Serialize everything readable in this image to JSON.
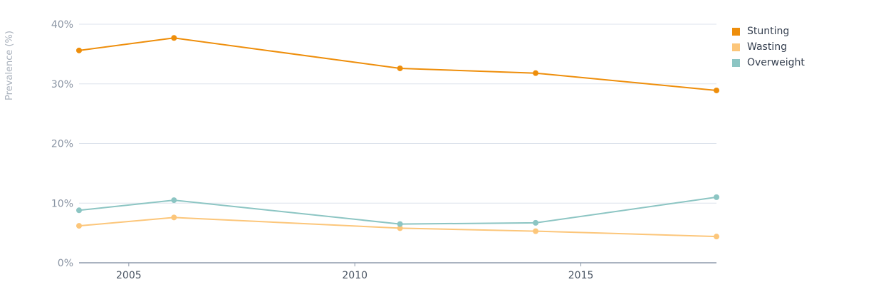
{
  "chart_data": {
    "type": "line",
    "ylabel": "Prevalence (%)",
    "ylim": [
      0,
      40
    ],
    "yticks": [
      {
        "value": 0,
        "label": "0%"
      },
      {
        "value": 10,
        "label": "10%"
      },
      {
        "value": 20,
        "label": "20%"
      },
      {
        "value": 30,
        "label": "30%"
      },
      {
        "value": 40,
        "label": "40%"
      }
    ],
    "xlim": [
      2003.9,
      2018.0
    ],
    "xticks": [
      {
        "value": 2005,
        "label": "2005"
      },
      {
        "value": 2010,
        "label": "2010"
      },
      {
        "value": 2015,
        "label": "2015"
      }
    ],
    "grid": true,
    "legend_position": "top-right",
    "series": [
      {
        "name": "Stunting",
        "color": "#ee8e0b",
        "points": [
          {
            "x": 2003.9,
            "y": 35.6
          },
          {
            "x": 2006,
            "y": 37.7
          },
          {
            "x": 2011,
            "y": 32.6
          },
          {
            "x": 2014,
            "y": 31.8
          },
          {
            "x": 2018,
            "y": 28.9
          }
        ]
      },
      {
        "name": "Wasting",
        "color": "#fcc67a",
        "points": [
          {
            "x": 2003.9,
            "y": 6.2
          },
          {
            "x": 2006,
            "y": 7.6
          },
          {
            "x": 2011,
            "y": 5.8
          },
          {
            "x": 2014,
            "y": 5.3
          },
          {
            "x": 2018,
            "y": 4.4
          }
        ]
      },
      {
        "name": "Overweight",
        "color": "#8cc5c3",
        "points": [
          {
            "x": 2003.9,
            "y": 8.8
          },
          {
            "x": 2006,
            "y": 10.5
          },
          {
            "x": 2011,
            "y": 6.5
          },
          {
            "x": 2014,
            "y": 6.7
          },
          {
            "x": 2018,
            "y": 11.0
          }
        ]
      }
    ]
  }
}
